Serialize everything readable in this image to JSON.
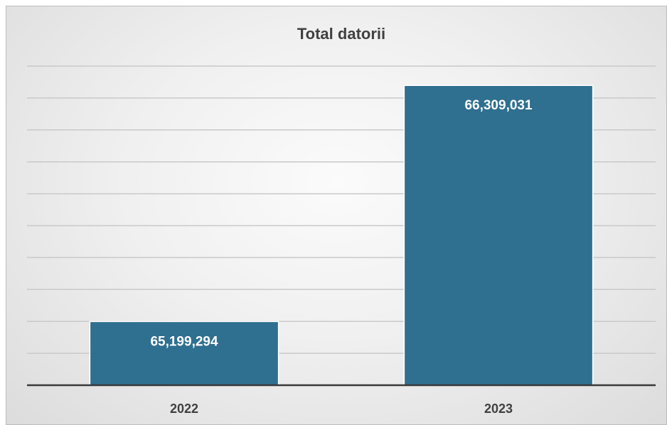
{
  "chart_data": {
    "type": "bar",
    "title": "Total datorii",
    "categories": [
      "2022",
      "2023"
    ],
    "values": [
      65199294,
      66309031
    ],
    "data_labels": [
      "65,199,294",
      "66,309,031"
    ],
    "ylim": [
      64900000,
      66400000
    ],
    "gridline_step": 150000,
    "grid": true,
    "legend": "none",
    "bar_color": "#2f6f8f",
    "xlabel": "",
    "ylabel": ""
  }
}
